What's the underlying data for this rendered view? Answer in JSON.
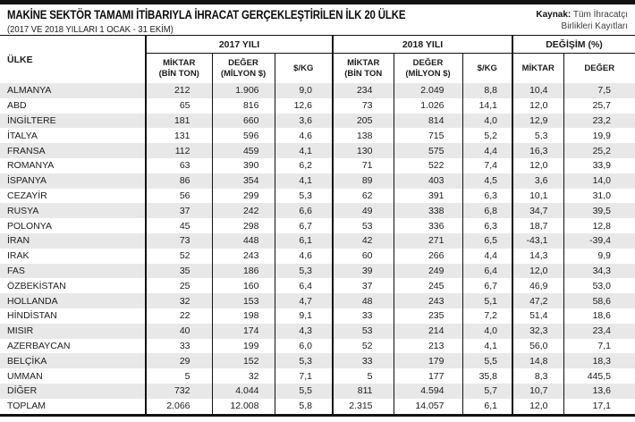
{
  "colors": {
    "top_bar": "#111111",
    "table_border": "#111111",
    "row_stripe": "#e8e8e8",
    "text": "#1c1c1c"
  },
  "header": {
    "title": "MAKİNE SEKTÖR TAMAMI İTİBARIYLA İHRACAT GERÇEKLEŞTİRİLEN İLK 20 ÜLKE",
    "subtitle": "(2017 VE 2018 YILLARI 1 OCAK - 31 EKİM)",
    "source_label": "Kaynak:",
    "source_line1": "Tüm İhracatçı",
    "source_line2": "Birlikleri Kayıtları"
  },
  "table": {
    "country_header": "ÜLKE",
    "groups": [
      {
        "label": "2017 YILI"
      },
      {
        "label": "2018 YILI"
      },
      {
        "label": "DEĞİŞİM (%)"
      }
    ],
    "sub_headers": [
      {
        "l1": "MİKTAR",
        "l2": "(BİN TON)"
      },
      {
        "l1": "DEĞER",
        "l2": "(MİLYON $)"
      },
      {
        "l1": "$/KG",
        "l2": ""
      },
      {
        "l1": "MİKTAR",
        "l2": "(BİN TON"
      },
      {
        "l1": "DEĞER",
        "l2": "(MİLYON $)"
      },
      {
        "l1": "$/KG",
        "l2": ""
      },
      {
        "l1": "MİKTAR",
        "l2": ""
      },
      {
        "l1": "DEĞER",
        "l2": ""
      }
    ]
  },
  "chart_data": {
    "type": "table",
    "title": "MAKİNE SEKTÖR TAMAMI İTİBARIYLA İHRACAT GERÇEKLEŞTİRİLEN İLK 20 ÜLKE",
    "subtitle": "(2017 VE 2018 YILLARI 1 OCAK - 31 EKİM)",
    "source": "Kaynak: Tüm İhracatçı Birlikleri Kayıtları",
    "column_groups": [
      "ÜLKE",
      "2017 YILI",
      "2018 YILI",
      "DEĞİŞİM (%)"
    ],
    "columns": [
      "ÜLKE",
      "2017 MİKTAR (BİN TON)",
      "2017 DEĞER (MİLYON $)",
      "2017 $/KG",
      "2018 MİKTAR (BİN TON)",
      "2018 DEĞER (MİLYON $)",
      "2018 $/KG",
      "DEĞİŞİM MİKTAR (%)",
      "DEĞİŞİM DEĞER (%)"
    ],
    "rows": [
      [
        "ALMANYA",
        "212",
        "1.906",
        "9,0",
        "234",
        "2.049",
        "8,8",
        "10,4",
        "7,5"
      ],
      [
        "ABD",
        "65",
        "816",
        "12,6",
        "73",
        "1.026",
        "14,1",
        "12,0",
        "25,7"
      ],
      [
        "İNGİLTERE",
        "181",
        "660",
        "3,6",
        "205",
        "814",
        "4,0",
        "12,9",
        "23,2"
      ],
      [
        "İTALYA",
        "131",
        "596",
        "4,6",
        "138",
        "715",
        "5,2",
        "5,3",
        "19,9"
      ],
      [
        "FRANSA",
        "112",
        "459",
        "4,1",
        "130",
        "575",
        "4,4",
        "16,3",
        "25,2"
      ],
      [
        "ROMANYA",
        "63",
        "390",
        "6,2",
        "71",
        "522",
        "7,4",
        "12,0",
        "33,9"
      ],
      [
        "İSPANYA",
        "86",
        "354",
        "4,1",
        "89",
        "403",
        "4,5",
        "3,6",
        "14,0"
      ],
      [
        "CEZAYİR",
        "56",
        "299",
        "5,3",
        "62",
        "391",
        "6,3",
        "10,1",
        "31,0"
      ],
      [
        "RUSYA",
        "37",
        "242",
        "6,6",
        "49",
        "338",
        "6,8",
        "34,7",
        "39,5"
      ],
      [
        "POLONYA",
        "45",
        "298",
        "6,7",
        "53",
        "336",
        "6,3",
        "18,7",
        "12,8"
      ],
      [
        "İRAN",
        "73",
        "448",
        "6,1",
        "42",
        "271",
        "6,5",
        "-43,1",
        "-39,4"
      ],
      [
        "IRAK",
        "52",
        "243",
        "4,6",
        "60",
        "266",
        "4,4",
        "14,3",
        "9,9"
      ],
      [
        "FAS",
        "35",
        "186",
        "5,3",
        "39",
        "249",
        "6,4",
        "12,0",
        "34,3"
      ],
      [
        "ÖZBEKİSTAN",
        "25",
        "160",
        "6,4",
        "37",
        "245",
        "6,7",
        "46,9",
        "53,0"
      ],
      [
        "HOLLANDA",
        "32",
        "153",
        "4,7",
        "48",
        "243",
        "5,1",
        "47,2",
        "58,6"
      ],
      [
        "HİNDİSTAN",
        "22",
        "198",
        "9,1",
        "33",
        "235",
        "7,2",
        "51,4",
        "18,6"
      ],
      [
        "MISIR",
        "40",
        "174",
        "4,3",
        "53",
        "214",
        "4,0",
        "32,3",
        "23,4"
      ],
      [
        "AZERBAYCAN",
        "33",
        "199",
        "6,0",
        "52",
        "213",
        "4,1",
        "56,0",
        "7,1"
      ],
      [
        "BELÇİKA",
        "29",
        "152",
        "5,3",
        "33",
        "179",
        "5,5",
        "14,8",
        "18,3"
      ],
      [
        "UMMAN",
        "5",
        "32",
        "7,1",
        "5",
        "177",
        "35,8",
        "8,3",
        "445,5"
      ],
      [
        "DİĞER",
        "732",
        "4.044",
        "5,5",
        "811",
        "4.594",
        "5,7",
        "10,7",
        "13,6"
      ],
      [
        "TOPLAM",
        "2.066",
        "12.008",
        "5,8",
        "2.315",
        "14.057",
        "6,1",
        "12,0",
        "17,1"
      ]
    ]
  }
}
